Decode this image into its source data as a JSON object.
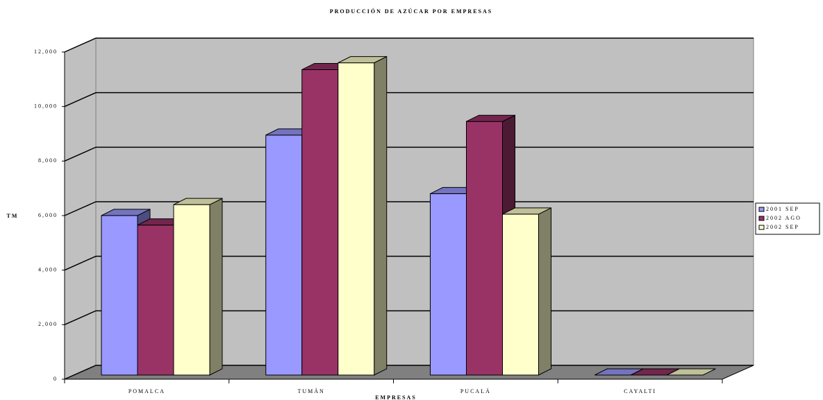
{
  "chart_data": {
    "type": "bar3d",
    "title": "PRODUCCIÓN DE AZÚCAR POR EMPRESAS",
    "x_label": "EMPRESAS",
    "y_label": "TM",
    "categories": [
      "POMALCA",
      "TUMÁN",
      "PUCALÁ",
      "CAYALTI"
    ],
    "series": [
      {
        "name": "2001 SEP",
        "color": "#9999ff",
        "values": [
          5850,
          8800,
          6650,
          0
        ]
      },
      {
        "name": "2002 AGO",
        "color": "#993366",
        "values": [
          5500,
          11200,
          9300,
          0
        ]
      },
      {
        "name": "2002 SEP",
        "color": "#ffffcc",
        "values": [
          6250,
          11450,
          5900,
          0
        ]
      }
    ],
    "ylim": [
      0,
      12000
    ],
    "yticks": [
      0,
      {
        "value": 2000,
        "label": "2,000"
      },
      {
        "value": 4000,
        "label": "4,000"
      },
      {
        "value": 6000,
        "label": "6,000"
      },
      {
        "value": 8000,
        "label": "8,000"
      },
      {
        "value": 10000,
        "label": "10,000"
      },
      {
        "value": 12000,
        "label": "12,000"
      }
    ],
    "grid": true,
    "legend": "right"
  }
}
